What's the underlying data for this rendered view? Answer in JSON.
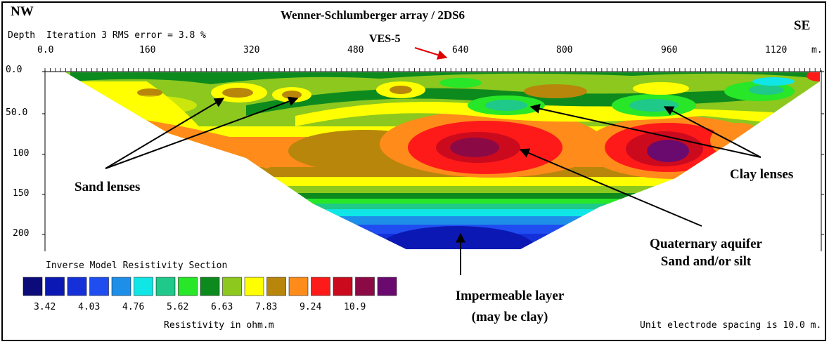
{
  "header": {
    "nw_label": "NW",
    "se_label": "SE",
    "title": "Wenner-Schlumberger array / 2DS6",
    "depth_label": "Depth",
    "iteration_text": "Iteration 3 RMS error = 3.8 %",
    "ves_label": "VES-5",
    "unit_label": "m."
  },
  "x_ticks": [
    "0.0",
    "160",
    "320",
    "480",
    "640",
    "800",
    "960",
    "1120"
  ],
  "depth_ticks": [
    "0.0",
    "50.0",
    "100",
    "150",
    "200"
  ],
  "annotations": {
    "sand_lenses": "Sand lenses",
    "clay_lenses": "Clay lenses",
    "aquifer_line1": "Quaternary aquifer",
    "aquifer_line2": "Sand and/or silt",
    "impermeable_line1": "Impermeable layer",
    "impermeable_line2": "(may be clay)"
  },
  "legend": {
    "title": "Inverse Model Resistivity Section",
    "colors": [
      "#0b0b7a",
      "#0b18b3",
      "#1530d9",
      "#1f4df0",
      "#1e8fe8",
      "#10e6e6",
      "#1ec98a",
      "#28e628",
      "#0d8a1e",
      "#8cc81e",
      "#ffff00",
      "#b8860b",
      "#ff8c1a",
      "#ff1a1a",
      "#cc0a1e",
      "#8b0a46",
      "#6b0a6e"
    ],
    "values": [
      "3.42",
      "4.03",
      "4.76",
      "5.62",
      "6.63",
      "7.83",
      "9.24",
      "10.9"
    ],
    "unit_text": "Resistivity in ohm.m"
  },
  "footer": {
    "spacing_text": "Unit electrode spacing is 10.0 m."
  },
  "colors": {
    "ves_arrow": "#e00000"
  }
}
